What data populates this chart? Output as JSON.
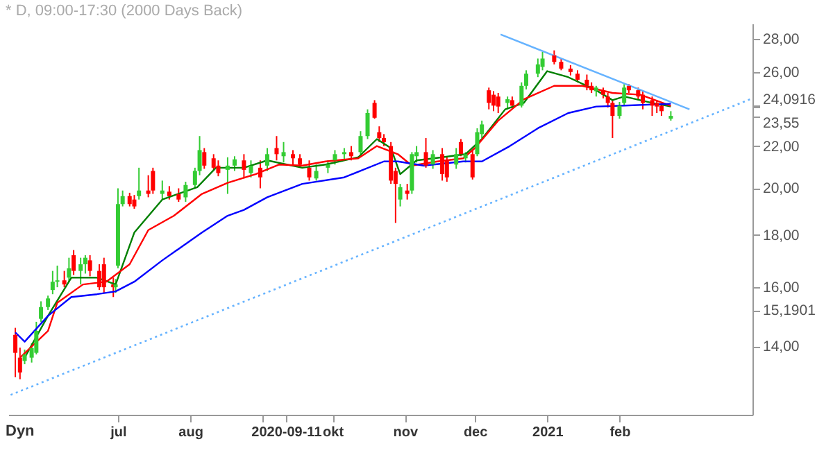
{
  "chart_data": {
    "type": "candlestick",
    "title": "* D, 09:00-17:30 (2000 Days Back)",
    "x": [
      "2020-05-18",
      "2020-05-20",
      "2020-05-22",
      "2020-05-25",
      "2020-05-27",
      "2020-05-29",
      "2020-06-01",
      "2020-06-03",
      "2020-06-05",
      "2020-06-08",
      "2020-06-10",
      "2020-06-12",
      "2020-06-15",
      "2020-06-17",
      "2020-06-19",
      "2020-06-23",
      "2020-06-25",
      "2020-06-29",
      "2020-06-30",
      "2020-07-01",
      "2020-07-03",
      "2020-07-06",
      "2020-07-08",
      "2020-07-10",
      "2020-07-14",
      "2020-07-16",
      "2020-07-20",
      "2020-07-23",
      "2020-07-27",
      "2020-07-30",
      "2020-08-03",
      "2020-08-05",
      "2020-08-07",
      "2020-08-11",
      "2020-08-13",
      "2020-08-17",
      "2020-08-20",
      "2020-08-24",
      "2020-08-27",
      "2020-08-31",
      "2020-09-03",
      "2020-09-07",
      "2020-09-10",
      "2020-09-14",
      "2020-09-17",
      "2020-09-21",
      "2020-09-24",
      "2020-09-29",
      "2020-10-02",
      "2020-10-06",
      "2020-10-09",
      "2020-10-13",
      "2020-10-16",
      "2020-10-19",
      "2020-10-21",
      "2020-10-23",
      "2020-10-26",
      "2020-10-28",
      "2020-10-30",
      "2020-11-02",
      "2020-11-04",
      "2020-11-06",
      "2020-11-10",
      "2020-11-13",
      "2020-11-17",
      "2020-11-19",
      "2020-11-23",
      "2020-11-25",
      "2020-11-27",
      "2020-11-30",
      "2020-12-02",
      "2020-12-04",
      "2020-12-07",
      "2020-12-09",
      "2020-12-11",
      "2020-12-15",
      "2020-12-17",
      "2020-12-21",
      "2020-12-23",
      "2020-12-28",
      "2020-12-30",
      "2021-01-04",
      "2021-01-07",
      "2021-01-11",
      "2021-01-14",
      "2021-01-18",
      "2021-01-20",
      "2021-01-22",
      "2021-01-25",
      "2021-01-27",
      "2021-01-29",
      "2021-02-01",
      "2021-02-03",
      "2021-02-05",
      "2021-02-09",
      "2021-02-11",
      "2021-02-15",
      "2021-02-17",
      "2021-02-19",
      "2021-02-23"
    ],
    "ohlc": [
      [
        14.37,
        14.6,
        13.06,
        13.8
      ],
      [
        13.65,
        13.96,
        13.0,
        13.2
      ],
      [
        13.55,
        13.9,
        13.45,
        13.75
      ],
      [
        13.65,
        14.1,
        13.5,
        13.95
      ],
      [
        13.8,
        14.8,
        13.75,
        14.5
      ],
      [
        14.9,
        15.5,
        14.8,
        15.3
      ],
      [
        15.3,
        15.7,
        15.2,
        15.6
      ],
      [
        15.9,
        16.6,
        15.75,
        16.2
      ],
      [
        16.2,
        16.8,
        16.0,
        16.25
      ],
      [
        16.25,
        16.6,
        16.0,
        16.1
      ],
      [
        16.35,
        17.1,
        16.2,
        16.7
      ],
      [
        17.2,
        17.4,
        16.45,
        16.6
      ],
      [
        16.6,
        17.1,
        16.1,
        16.85
      ],
      [
        16.85,
        17.2,
        16.5,
        17.1
      ],
      [
        17.0,
        17.2,
        16.4,
        16.6
      ],
      [
        16.6,
        16.85,
        15.9,
        16.0
      ],
      [
        16.85,
        17.1,
        15.8,
        16.0
      ],
      [
        16.1,
        16.35,
        15.65,
        16.0
      ],
      [
        16.0,
        16.3,
        15.8,
        16.1
      ],
      [
        16.8,
        20.0,
        16.7,
        19.3
      ],
      [
        19.3,
        19.9,
        19.2,
        19.65
      ],
      [
        19.65,
        19.8,
        19.2,
        19.3
      ],
      [
        19.5,
        19.7,
        19.1,
        19.2
      ],
      [
        19.65,
        20.95,
        19.5,
        19.9
      ],
      [
        19.9,
        20.6,
        19.6,
        19.75
      ],
      [
        20.8,
        20.95,
        19.75,
        19.9
      ],
      [
        19.75,
        20.35,
        19.5,
        19.9
      ],
      [
        19.85,
        20.1,
        19.5,
        19.65
      ],
      [
        19.75,
        20.0,
        19.4,
        19.5
      ],
      [
        19.6,
        20.3,
        19.4,
        20.15
      ],
      [
        20.15,
        20.95,
        20.0,
        20.8
      ],
      [
        20.8,
        22.5,
        20.6,
        21.8
      ],
      [
        21.7,
        21.9,
        20.9,
        21.05
      ],
      [
        21.4,
        21.6,
        20.8,
        20.95
      ],
      [
        21.05,
        21.3,
        20.55,
        20.7
      ],
      [
        20.85,
        21.45,
        19.75,
        21.05
      ],
      [
        21.05,
        21.5,
        20.8,
        21.35
      ],
      [
        21.3,
        21.6,
        20.45,
        20.85
      ],
      [
        20.7,
        21.3,
        20.5,
        21.05
      ],
      [
        20.95,
        21.3,
        20.0,
        20.5
      ],
      [
        21.05,
        21.9,
        20.8,
        21.6
      ],
      [
        21.9,
        22.5,
        21.3,
        21.6
      ],
      [
        21.5,
        22.2,
        21.2,
        21.7
      ],
      [
        21.6,
        21.8,
        21.1,
        21.4
      ],
      [
        21.4,
        21.6,
        20.95,
        21.1
      ],
      [
        20.95,
        21.3,
        20.35,
        20.5
      ],
      [
        20.45,
        21.1,
        20.35,
        20.8
      ],
      [
        20.95,
        21.3,
        20.7,
        21.1
      ],
      [
        21.3,
        21.8,
        21.1,
        21.6
      ],
      [
        21.6,
        21.9,
        21.3,
        21.7
      ],
      [
        21.7,
        22.0,
        21.3,
        21.5
      ],
      [
        21.7,
        22.75,
        21.6,
        22.5
      ],
      [
        22.5,
        23.9,
        22.35,
        23.7
      ],
      [
        24.25,
        24.4,
        23.4,
        23.45
      ],
      [
        22.7,
        23.0,
        22.2,
        22.4
      ],
      [
        22.4,
        22.6,
        22.0,
        22.2
      ],
      [
        22.0,
        22.2,
        20.2,
        20.35
      ],
      [
        20.8,
        20.95,
        18.5,
        20.2
      ],
      [
        19.5,
        20.2,
        19.2,
        20.05
      ],
      [
        19.9,
        20.2,
        19.5,
        19.75
      ],
      [
        19.9,
        21.7,
        19.75,
        21.6
      ],
      [
        21.5,
        22.0,
        21.2,
        21.7
      ],
      [
        21.7,
        22.4,
        20.95,
        21.05
      ],
      [
        21.1,
        21.8,
        20.9,
        21.6
      ],
      [
        21.6,
        21.9,
        20.35,
        20.65
      ],
      [
        21.3,
        21.5,
        20.3,
        20.5
      ],
      [
        21.1,
        21.9,
        20.9,
        21.6
      ],
      [
        22.2,
        22.35,
        21.5,
        21.6
      ],
      [
        21.4,
        21.7,
        21.2,
        21.6
      ],
      [
        21.6,
        21.8,
        20.4,
        20.5
      ],
      [
        21.6,
        22.9,
        21.5,
        22.7
      ],
      [
        22.6,
        23.3,
        22.4,
        23.1
      ],
      [
        24.95,
        25.1,
        23.9,
        24.25
      ],
      [
        24.7,
        24.9,
        23.8,
        24.1
      ],
      [
        24.6,
        24.8,
        23.7,
        24.05
      ],
      [
        24.25,
        24.6,
        23.9,
        24.45
      ],
      [
        24.4,
        24.6,
        23.9,
        24.1
      ],
      [
        24.1,
        25.4,
        24.0,
        25.2
      ],
      [
        25.2,
        26.1,
        25.0,
        25.9
      ],
      [
        25.9,
        26.8,
        25.7,
        26.45
      ],
      [
        26.3,
        27.2,
        26.1,
        26.8
      ],
      [
        27.0,
        27.3,
        26.45,
        26.6
      ],
      [
        26.6,
        26.8,
        26.1,
        26.2
      ],
      [
        26.2,
        26.4,
        25.8,
        26.0
      ],
      [
        25.9,
        26.1,
        25.4,
        25.55
      ],
      [
        25.55,
        25.85,
        24.95,
        25.2
      ],
      [
        25.2,
        25.4,
        24.8,
        24.95
      ],
      [
        24.9,
        25.2,
        24.6,
        25.1
      ],
      [
        24.95,
        25.1,
        24.5,
        24.7
      ],
      [
        24.6,
        24.8,
        24.0,
        24.25
      ],
      [
        24.25,
        24.4,
        22.4,
        23.55
      ],
      [
        23.55,
        24.3,
        23.4,
        24.1
      ],
      [
        24.25,
        25.3,
        24.1,
        25.1
      ],
      [
        25.2,
        25.3,
        24.8,
        24.95
      ],
      [
        24.95,
        25.1,
        24.4,
        24.6
      ],
      [
        24.7,
        24.9,
        23.9,
        24.25
      ],
      [
        24.4,
        24.6,
        23.55,
        24.1
      ],
      [
        24.25,
        24.4,
        23.7,
        24.05
      ],
      [
        24.1,
        24.25,
        23.55,
        23.8
      ],
      [
        23.4,
        23.8,
        23.3,
        23.55
      ]
    ],
    "colors": [
      "#ff0000",
      "#ff0000",
      "#33cc33",
      "#33cc33",
      "#33cc33",
      "#33cc33",
      "#33cc33",
      "#33cc33",
      "#33cc33",
      "#ff0000",
      "#33cc33",
      "#ff0000",
      "#33cc33",
      "#33cc33",
      "#ff0000",
      "#ff0000",
      "#ff0000",
      "#ff0000",
      "#33cc33",
      "#33cc33",
      "#33cc33",
      "#ff0000",
      "#ff0000",
      "#33cc33",
      "#ff0000",
      "#ff0000",
      "#33cc33",
      "#ff0000",
      "#ff0000",
      "#33cc33",
      "#33cc33",
      "#33cc33",
      "#ff0000",
      "#ff0000",
      "#ff0000",
      "#33cc33",
      "#33cc33",
      "#ff0000",
      "#33cc33",
      "#ff0000",
      "#33cc33",
      "#ff0000",
      "#33cc33",
      "#ff0000",
      "#ff0000",
      "#ff0000",
      "#33cc33",
      "#33cc33",
      "#33cc33",
      "#33cc33",
      "#ff0000",
      "#33cc33",
      "#33cc33",
      "#ff0000",
      "#ff0000",
      "#ff0000",
      "#ff0000",
      "#ff0000",
      "#33cc33",
      "#ff0000",
      "#33cc33",
      "#33cc33",
      "#ff0000",
      "#33cc33",
      "#ff0000",
      "#ff0000",
      "#33cc33",
      "#ff0000",
      "#33cc33",
      "#ff0000",
      "#33cc33",
      "#33cc33",
      "#ff0000",
      "#ff0000",
      "#ff0000",
      "#33cc33",
      "#ff0000",
      "#33cc33",
      "#33cc33",
      "#33cc33",
      "#33cc33",
      "#ff0000",
      "#ff0000",
      "#ff0000",
      "#ff0000",
      "#ff0000",
      "#ff0000",
      "#33cc33",
      "#ff0000",
      "#ff0000",
      "#ff0000",
      "#33cc33",
      "#33cc33",
      "#ff0000",
      "#ff0000",
      "#ff0000",
      "#ff0000",
      "#ff0000",
      "#ff0000",
      "#33cc33"
    ],
    "series": [
      {
        "type": "line",
        "color": "#008000",
        "x": [
          "2020-05-22",
          "2020-06-01",
          "2020-06-11",
          "2020-06-22",
          "2020-06-30",
          "2020-07-08",
          "2020-07-20",
          "2020-08-04",
          "2020-08-12",
          "2020-08-24",
          "2020-09-03",
          "2020-09-18",
          "2020-09-28",
          "2020-10-12",
          "2020-10-20",
          "2020-10-26",
          "2020-10-30",
          "2020-11-06",
          "2020-11-17",
          "2020-11-27",
          "2020-12-04",
          "2020-12-14",
          "2020-12-22",
          "2021-01-01",
          "2021-01-10",
          "2021-01-22",
          "2021-01-29",
          "2021-02-03",
          "2021-02-15",
          "2021-02-23"
        ],
        "values": [
          13.65,
          15.0,
          16.35,
          16.35,
          16.1,
          18.1,
          19.5,
          20.05,
          20.95,
          20.95,
          21.3,
          20.95,
          21.1,
          21.45,
          22.35,
          21.9,
          20.65,
          21.3,
          21.45,
          21.6,
          22.35,
          23.9,
          24.25,
          26.05,
          25.7,
          24.95,
          24.4,
          24.6,
          24.25,
          24.05
        ]
      },
      {
        "type": "line",
        "color": "#ff0000",
        "x": [
          "2020-05-20",
          "2020-06-01",
          "2020-06-05",
          "2020-06-16",
          "2020-06-26",
          "2020-07-06",
          "2020-07-14",
          "2020-07-25",
          "2020-08-06",
          "2020-08-17",
          "2020-08-29",
          "2020-09-08",
          "2020-09-18",
          "2020-09-28",
          "2020-10-12",
          "2020-10-20",
          "2020-10-29",
          "2020-11-04",
          "2020-11-15",
          "2020-11-26",
          "2020-12-01",
          "2020-12-11",
          "2020-12-22",
          "2021-01-04",
          "2021-01-16",
          "2021-01-29",
          "2021-02-10",
          "2021-02-23"
        ],
        "values": [
          13.65,
          14.5,
          15.45,
          16.1,
          16.2,
          16.85,
          18.2,
          18.8,
          19.75,
          20.25,
          20.65,
          21.1,
          21.05,
          21.25,
          21.4,
          22.0,
          21.6,
          21.05,
          21.25,
          21.4,
          21.9,
          23.3,
          24.45,
          25.2,
          25.2,
          24.8,
          24.7,
          24.09
        ]
      },
      {
        "type": "line",
        "color": "#0000ff",
        "x": [
          "2020-05-18",
          "2020-05-22",
          "2020-06-01",
          "2020-06-11",
          "2020-06-22",
          "2020-06-30",
          "2020-07-08",
          "2020-07-20",
          "2020-08-06",
          "2020-08-17",
          "2020-08-24",
          "2020-09-03",
          "2020-09-18",
          "2020-10-06",
          "2020-10-23",
          "2020-10-29",
          "2020-11-09",
          "2020-11-26",
          "2020-12-04",
          "2020-12-16",
          "2020-12-28",
          "2021-01-10",
          "2021-01-22",
          "2021-02-03",
          "2021-02-23"
        ],
        "values": [
          14.45,
          14.15,
          15.0,
          15.65,
          15.75,
          15.85,
          16.2,
          17.0,
          18.1,
          18.8,
          19.05,
          19.6,
          20.2,
          20.5,
          21.25,
          21.25,
          21.05,
          21.25,
          21.25,
          22.0,
          22.9,
          23.7,
          24.05,
          24.1,
          24.2
        ]
      },
      {
        "type": "line",
        "color": "#66b3ff",
        "line_style": "solid",
        "x": [
          "2020-12-12",
          "2021-03-03"
        ],
        "values": [
          28.3,
          23.9
        ]
      },
      {
        "type": "line",
        "color": "#66b3ff",
        "line_style": "dotted",
        "x": [
          "2020-05-16",
          "2021-03-30"
        ],
        "values": [
          12.55,
          24.5
        ]
      }
    ],
    "xlim": [
      "2020-05-15",
      "2021-03-30"
    ],
    "xticks": [
      {
        "value": "2020-07-01",
        "label": "jul"
      },
      {
        "value": "2020-08-01",
        "label": "aug"
      },
      {
        "value": "2020-09-01",
        "label": null
      },
      {
        "value": "2020-09-11",
        "label": "2020-09-11"
      },
      {
        "value": "2020-10-01",
        "label": "okt"
      },
      {
        "value": "2020-11-01",
        "label": "nov"
      },
      {
        "value": "2020-12-01",
        "label": "dec"
      },
      {
        "value": "2021-01-01",
        "label": "2021"
      },
      {
        "value": "2021-02-01",
        "label": "feb"
      }
    ],
    "ylim": [
      12.0,
      29.0
    ],
    "yticks": [
      {
        "value": 14,
        "label": "14,00"
      },
      {
        "value": 15.1901,
        "label": "15,1901"
      },
      {
        "value": 16,
        "label": "16,00"
      },
      {
        "value": 18,
        "label": "18,00"
      },
      {
        "value": 20,
        "label": "20,00"
      },
      {
        "value": 22,
        "label": "22,00"
      },
      {
        "value": 23.55,
        "label": "23,55"
      },
      {
        "value": 24,
        "label": null
      },
      {
        "value": 24.0916,
        "label": "24,0916"
      },
      {
        "value": 26,
        "label": "26,00"
      },
      {
        "value": 28,
        "label": "28,00"
      }
    ],
    "log": "y",
    "grid": false,
    "annotations": [
      "Dyn"
    ]
  }
}
